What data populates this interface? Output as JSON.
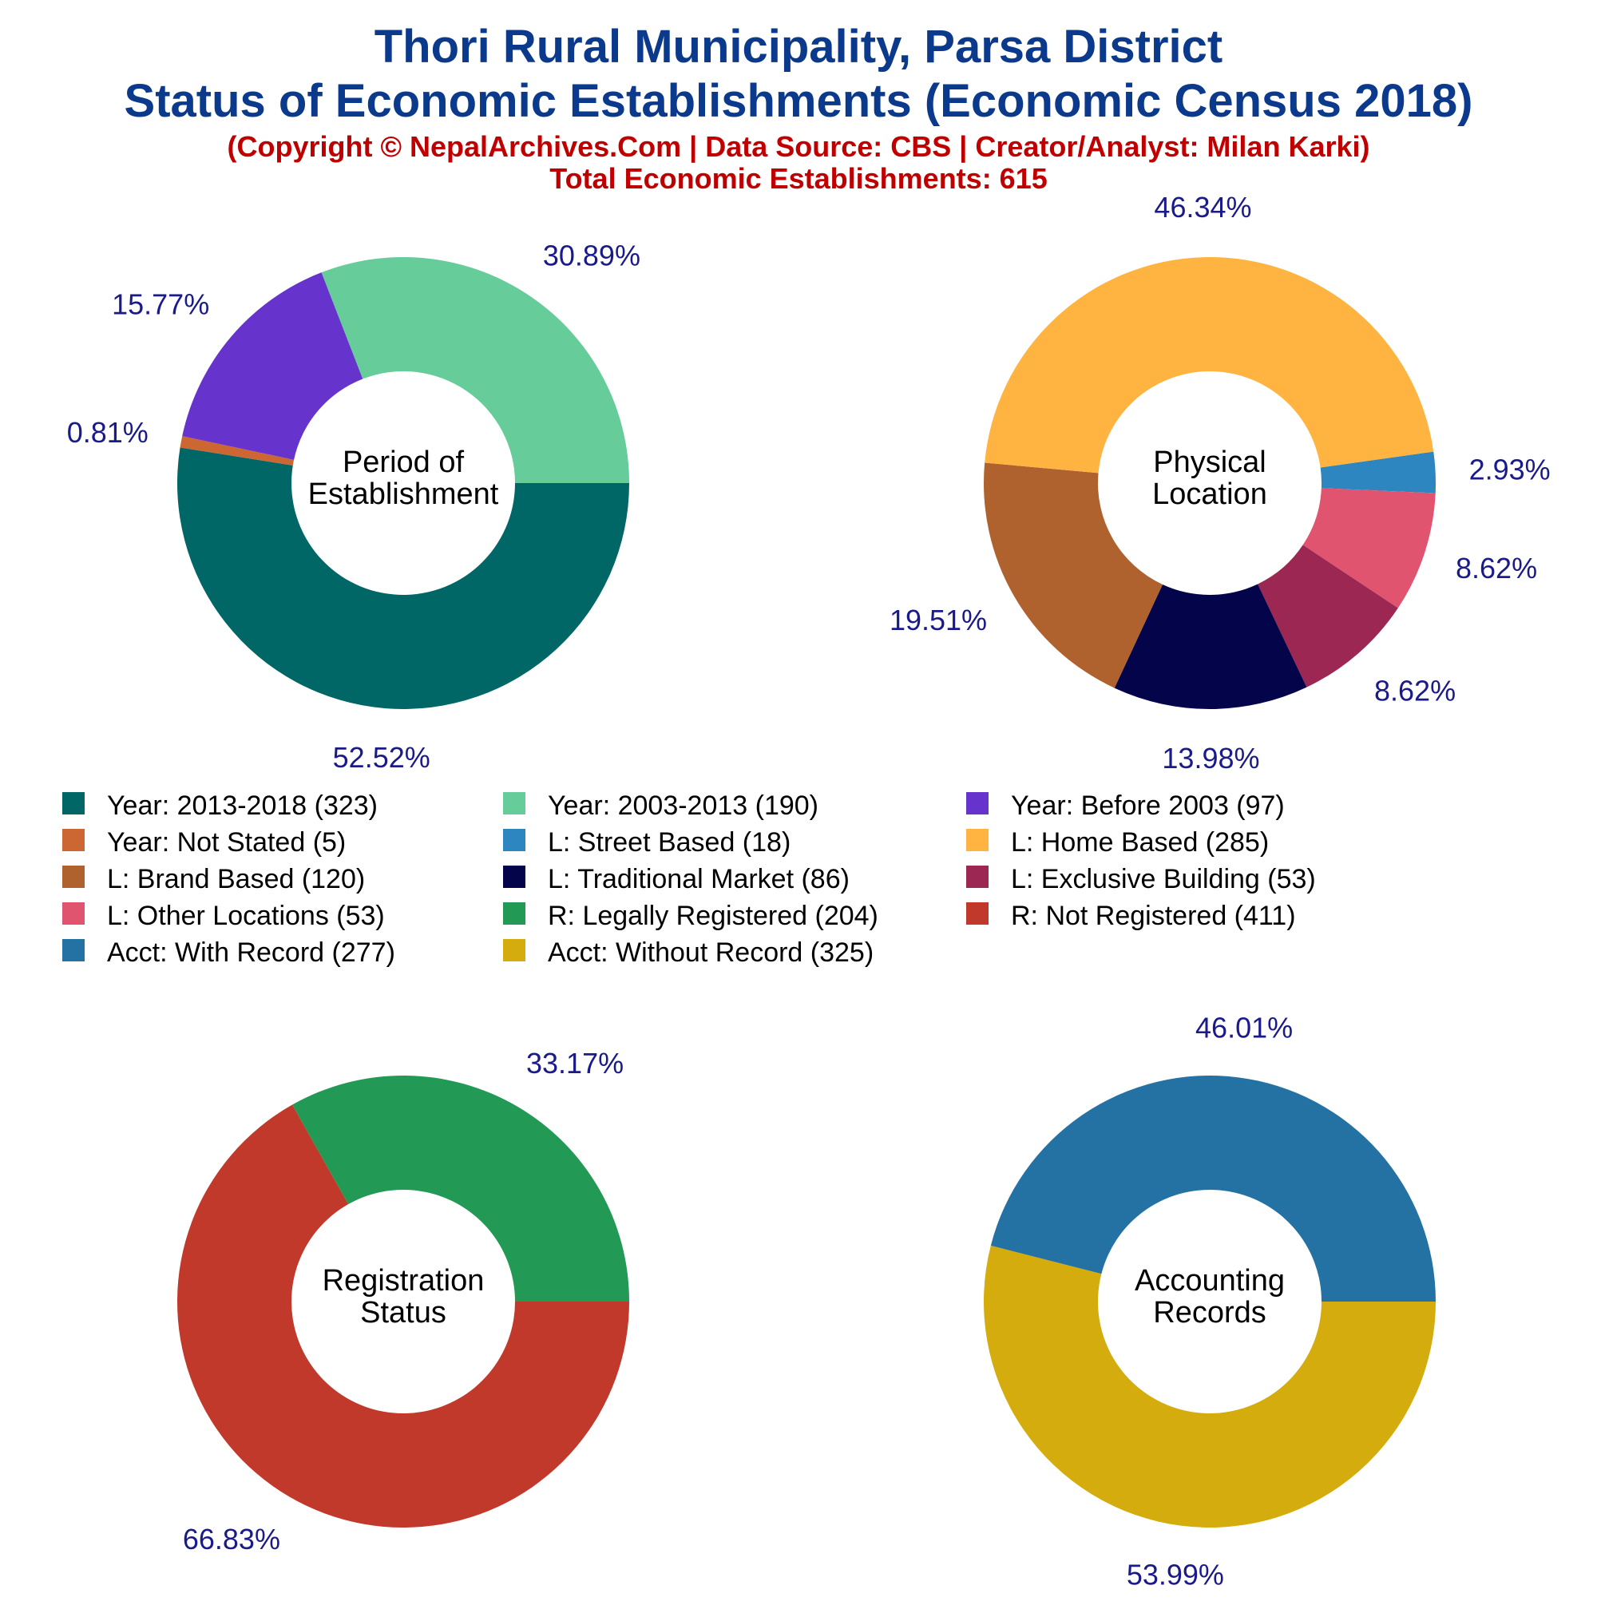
{
  "title": {
    "line1": "Thori Rural Municipality, Parsa District",
    "line2": "Status of Economic Establishments (Economic Census 2018)",
    "copyright": "(Copyright © NepalArchives.Com | Data Source: CBS | Creator/Analyst: Milan Karki)",
    "total": "Total Economic Establishments: 615"
  },
  "chart_data": [
    {
      "type": "pie",
      "center_label": [
        "Period of",
        "Establishment"
      ],
      "slices": [
        {
          "label": "Year: 2013-2018",
          "value": 323,
          "pct_label": "52.52%",
          "color": "#006666"
        },
        {
          "label": "Year: Not Stated",
          "value": 5,
          "pct_label": "0.81%",
          "color": "#cc6633"
        },
        {
          "label": "Year: Before 2003",
          "value": 97,
          "pct_label": "15.77%",
          "color": "#6633cc"
        },
        {
          "label": "Year: 2003-2013",
          "value": 190,
          "pct_label": "30.89%",
          "color": "#66cc99"
        }
      ]
    },
    {
      "type": "pie",
      "center_label": [
        "Physical",
        "Location"
      ],
      "slices": [
        {
          "label": "L: Street Based",
          "value": 18,
          "pct_label": "2.93%",
          "color": "#2e86c1"
        },
        {
          "label": "L: Other Locations",
          "value": 53,
          "pct_label": "8.62%",
          "color": "#e05470"
        },
        {
          "label": "L: Exclusive Building",
          "value": 53,
          "pct_label": "8.62%",
          "color": "#9b2752"
        },
        {
          "label": "L: Traditional Market",
          "value": 86,
          "pct_label": "13.98%",
          "color": "#04044a"
        },
        {
          "label": "L: Brand Based",
          "value": 120,
          "pct_label": "19.51%",
          "color": "#b0622e"
        },
        {
          "label": "L: Home Based",
          "value": 285,
          "pct_label": "46.34%",
          "color": "#ffb340"
        }
      ]
    },
    {
      "type": "pie",
      "center_label": [
        "Registration",
        "Status"
      ],
      "slices": [
        {
          "label": "R: Not Registered",
          "value": 411,
          "pct_label": "66.83%",
          "color": "#c0392b"
        },
        {
          "label": "R: Legally Registered",
          "value": 204,
          "pct_label": "33.17%",
          "color": "#229954"
        }
      ]
    },
    {
      "type": "pie",
      "center_label": [
        "Accounting",
        "Records"
      ],
      "slices": [
        {
          "label": "Acct: Without Record",
          "value": 325,
          "pct_label": "53.99%",
          "color": "#d4ac0d"
        },
        {
          "label": "Acct: With Record",
          "value": 277,
          "pct_label": "46.01%",
          "color": "#2471a3"
        }
      ]
    }
  ],
  "legend": [
    {
      "text": "Year: 2013-2018 (323)",
      "color": "#006666"
    },
    {
      "text": "Year: 2003-2013 (190)",
      "color": "#66cc99"
    },
    {
      "text": "Year: Before 2003 (97)",
      "color": "#6633cc"
    },
    {
      "text": "Year: Not Stated (5)",
      "color": "#cc6633"
    },
    {
      "text": "L: Street Based (18)",
      "color": "#2e86c1"
    },
    {
      "text": "L: Home Based (285)",
      "color": "#ffb340"
    },
    {
      "text": "L: Brand Based (120)",
      "color": "#b0622e"
    },
    {
      "text": "L: Traditional Market (86)",
      "color": "#04044a"
    },
    {
      "text": "L: Exclusive Building (53)",
      "color": "#9b2752"
    },
    {
      "text": "L: Other Locations (53)",
      "color": "#e05470"
    },
    {
      "text": "R: Legally Registered (204)",
      "color": "#229954"
    },
    {
      "text": "R: Not Registered (411)",
      "color": "#c0392b"
    },
    {
      "text": "Acct: With Record (277)",
      "color": "#2471a3"
    },
    {
      "text": "Acct: Without Record (325)",
      "color": "#d4ac0d"
    }
  ]
}
